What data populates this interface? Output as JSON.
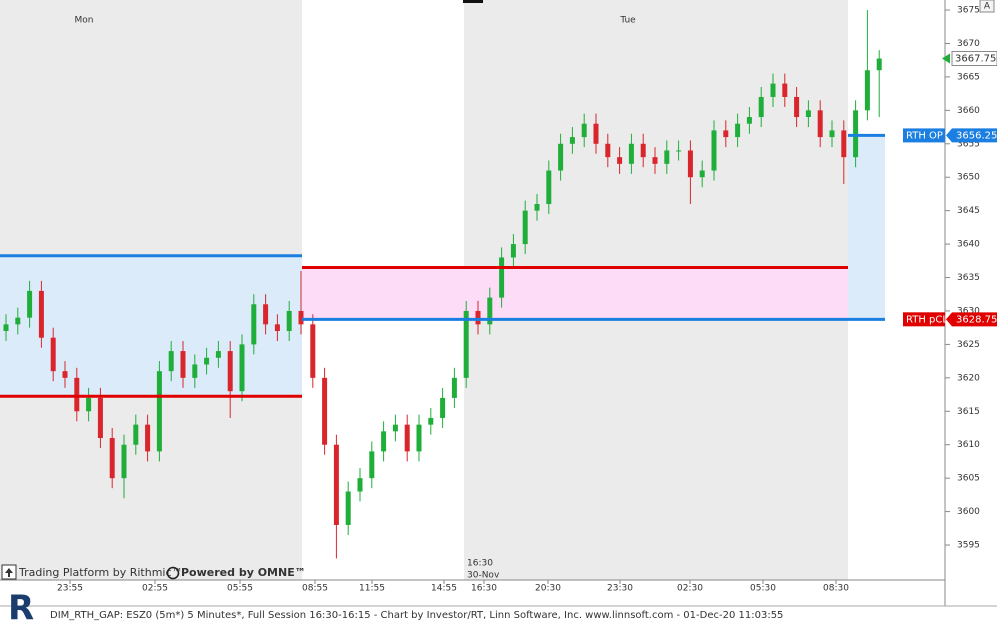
{
  "chart_data": {
    "type": "candlestick",
    "session_labels": [
      "Mon",
      "Tue"
    ],
    "open_marker": [
      "16:30",
      "30-Nov"
    ],
    "xtick_labels": [
      "23:55",
      "02:55",
      "05:55",
      "08:55",
      "11:55",
      "14:55",
      "16:30",
      "20:30",
      "23:30",
      "02:30",
      "05:30",
      "08:30"
    ],
    "up_color": "#1fae3a",
    "down_color": "#d9262c",
    "open": [
      3627,
      3628,
      3629,
      3633,
      3626,
      3621,
      3620,
      3615,
      3617,
      3611,
      3605,
      3610,
      3613,
      3609,
      3621,
      3624,
      3620,
      3622,
      3623,
      3624,
      3618,
      3625,
      3631,
      3628,
      3627,
      3630,
      3628,
      3620,
      3610,
      3598,
      3603,
      3605,
      3609,
      3612,
      3613,
      3609,
      3613,
      3614,
      3617,
      3620,
      3630,
      3628,
      3632,
      3638,
      3640,
      3645,
      3646,
      3651,
      3655,
      3656,
      3658,
      3655,
      3653,
      3652,
      3655,
      3653,
      3652,
      3654,
      3654,
      3650,
      3651,
      3657,
      3656,
      3658,
      3659,
      3662,
      3664,
      3662,
      3659,
      3660,
      3656,
      3657,
      3653,
      3660,
      3666
    ],
    "high": [
      3629.5,
      3630.5,
      3634.5,
      3634.5,
      3627.5,
      3622.5,
      3621.5,
      3618.5,
      3618.5,
      3612.5,
      3611.5,
      3614.5,
      3614.5,
      3622.5,
      3625.5,
      3625.5,
      3623.5,
      3624.5,
      3625.5,
      3625.5,
      3626.5,
      3632.5,
      3632.5,
      3629.5,
      3631.5,
      3636,
      3629.5,
      3621.5,
      3611.5,
      3604.5,
      3606.5,
      3610.5,
      3613.5,
      3614.5,
      3614.5,
      3614.5,
      3615.5,
      3618.5,
      3621.5,
      3631.5,
      3631.5,
      3633.5,
      3639.5,
      3641.5,
      3646.5,
      3647.5,
      3652.5,
      3656.5,
      3657.5,
      3659.5,
      3659.5,
      3656.5,
      3654.5,
      3656.5,
      3656.5,
      3654.5,
      3655.5,
      3655.5,
      3655.5,
      3652.5,
      3658.5,
      3658.5,
      3659.5,
      3660.5,
      3663.5,
      3665.5,
      3665.5,
      3663.5,
      3661.5,
      3661.5,
      3658.5,
      3658.5,
      3661.5,
      3675,
      3669
    ],
    "low": [
      3625.5,
      3626.5,
      3627.5,
      3624.5,
      3619.5,
      3618.5,
      3613.5,
      3613.5,
      3609.5,
      3603.5,
      3602,
      3608.5,
      3607.5,
      3607.5,
      3619.5,
      3618.5,
      3618.5,
      3620.5,
      3621.5,
      3614,
      3616.5,
      3623.5,
      3626.5,
      3625.5,
      3625.5,
      3626.5,
      3618.5,
      3608.5,
      3593,
      3596.5,
      3601.5,
      3603.5,
      3607.5,
      3610.5,
      3607.5,
      3607.5,
      3611.5,
      3612.5,
      3615.5,
      3618.5,
      3626.5,
      3626.5,
      3630.5,
      3636.5,
      3638.5,
      3643.5,
      3644.5,
      3649.5,
      3653.5,
      3654.5,
      3653.5,
      3651.5,
      3650.5,
      3650.5,
      3651.5,
      3650.5,
      3650.5,
      3652.5,
      3646,
      3648.5,
      3649.5,
      3654.5,
      3654.5,
      3656.5,
      3657.5,
      3660.5,
      3660.5,
      3657.5,
      3657.5,
      3654.5,
      3654.5,
      3649,
      3651.5,
      3658.5,
      3659
    ],
    "close": [
      3628,
      3629,
      3633,
      3626,
      3621,
      3620,
      3615,
      3617,
      3611,
      3605,
      3610,
      3613,
      3609,
      3621,
      3624,
      3620,
      3622,
      3623,
      3624,
      3618,
      3625,
      3631,
      3628,
      3627,
      3630,
      3628,
      3620,
      3610,
      3598,
      3603,
      3605,
      3609,
      3612,
      3613,
      3609,
      3613,
      3614,
      3617,
      3620,
      3630,
      3628,
      3632,
      3638,
      3640,
      3645,
      3646,
      3651,
      3655,
      3656,
      3658,
      3655,
      3653,
      3652,
      3655,
      3653,
      3652,
      3654,
      3654,
      3650,
      3651,
      3657,
      3656,
      3658,
      3659,
      3662,
      3664,
      3662,
      3659,
      3660,
      3656,
      3657,
      3653,
      3660,
      3666,
      3667.75
    ],
    "ylim": [
      3589.77,
      3676.5
    ],
    "yticks": [
      3595,
      3600,
      3605,
      3610,
      3615,
      3620,
      3625,
      3630,
      3635,
      3640,
      3645,
      3650,
      3655,
      3660,
      3665,
      3670,
      3675
    ],
    "prior_gap": {
      "high": 3638.25,
      "low": 3617.25
    },
    "gap_zone": {
      "high": 3636.5,
      "low": 3628.75
    },
    "rth_open": {
      "label": "RTH OP",
      "value": 3656.25,
      "color": "#1a7fe0"
    },
    "rth_prev_close": {
      "label": "RTH pCL",
      "value": 3628.75,
      "color": "#e00000"
    },
    "last_price": 3667.75,
    "branding": [
      "Trading Platform by Rithmic™",
      "Powered by OMNE™"
    ],
    "footer": "DIM_RTH_GAP: ESZ0 (5m*) 5 Minutes*, Full Session 16:30-16:15 - Chart by Investor/RT, Linn Software, Inc. www.linnsoft.com - 01-Dec-20 11:03:55",
    "button": "A"
  }
}
